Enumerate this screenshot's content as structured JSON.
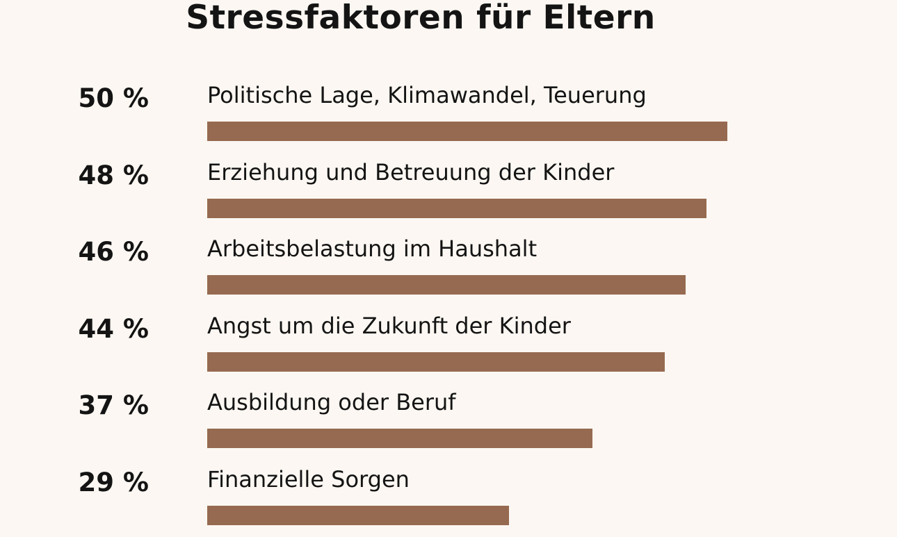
{
  "colors": {
    "background": "#fcf7f2",
    "bar": "#966a50",
    "text": "#141414"
  },
  "chart_data": {
    "type": "bar",
    "orientation": "horizontal",
    "title": "Stressfaktoren für Eltern",
    "categories": [
      "Politische Lage, Klimawandel, Teuerung",
      "Erziehung und Betreuung der Kinder",
      "Arbeitsbelastung im Haushalt",
      "Angst um die Zukunft der Kinder",
      "Ausbildung oder Beruf",
      "Finanzielle Sorgen"
    ],
    "values": [
      50,
      48,
      46,
      44,
      37,
      29
    ],
    "value_labels": [
      "50 %",
      "48 %",
      "46 %",
      "44 %",
      "37 %",
      "29 %"
    ],
    "unit": "%",
    "grid": false,
    "legend": "none"
  }
}
